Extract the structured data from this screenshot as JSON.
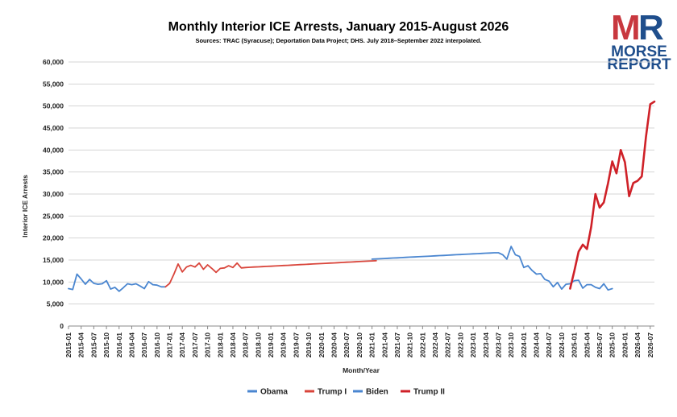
{
  "header": {
    "title": "Monthly Interior ICE Arrests, January 2015-August 2026",
    "subtitle": "Sources: TRAC (Syracuse); Deportation Data Project; DHS. July 2018–September 2022 interpolated."
  },
  "logo": {
    "mark": "MR",
    "line1": "MORSE",
    "line2": "REPORT",
    "colors": {
      "m": "#c8383f",
      "r": "#1f4e8c",
      "text": "#1f4e8c"
    }
  },
  "chart_data": {
    "type": "line",
    "xlabel": "Month/Year",
    "ylabel": "Interior ICE Arrests",
    "ylim": [
      0,
      60000
    ],
    "yticks": [
      0,
      5000,
      10000,
      15000,
      20000,
      25000,
      30000,
      35000,
      40000,
      45000,
      50000,
      55000,
      60000
    ],
    "ytick_labels": [
      "0",
      "5,000",
      "10,000",
      "15,000",
      "20,000",
      "25,000",
      "30,000",
      "35,000",
      "40,000",
      "45,000",
      "50,000",
      "55,000",
      "60,000"
    ],
    "xtick_labels": [
      "2015-01",
      "2015-04",
      "2015-07",
      "2015-10",
      "2016-01",
      "2016-04",
      "2016-07",
      "2016-10",
      "2017-01",
      "2017-04",
      "2017-07",
      "2017-10",
      "2018-01",
      "2018-04",
      "2018-07",
      "2018-10",
      "2019-01",
      "2019-04",
      "2019-07",
      "2019-10",
      "2020-01",
      "2020-04",
      "2020-07",
      "2020-10",
      "2021-01",
      "2021-04",
      "2021-07",
      "2021-10",
      "2022-01",
      "2022-04",
      "2022-07",
      "2022-10",
      "2023-01",
      "2023-04",
      "2023-07",
      "2023-10",
      "2024-01",
      "2024-04",
      "2024-07",
      "2024-10",
      "2025-01",
      "2025-04",
      "2025-07",
      "2025-10",
      "2026-01",
      "2026-04",
      "2026-07"
    ],
    "grid": true,
    "legend_position": "bottom-center",
    "series": [
      {
        "name": "Obama",
        "color": "#4a86d0",
        "start": "2015-01",
        "values": [
          8500,
          8300,
          11800,
          10700,
          9500,
          10600,
          9700,
          9500,
          9600,
          10300,
          8400,
          8800,
          7900,
          8700,
          9600,
          9400,
          9600,
          9100,
          8500,
          10100,
          9400,
          9300,
          8900,
          8900
        ]
      },
      {
        "name": "Trump I",
        "color": "#d9453b",
        "start": "2016-12",
        "values": [
          8900,
          9700,
          11800,
          14100,
          12300,
          13400,
          13800,
          13400,
          14300,
          12900,
          13900,
          13100,
          12200,
          13100,
          13200,
          13700,
          13300,
          14300,
          13200,
          13300,
          13350,
          13400,
          13450,
          13500,
          13550,
          13600,
          13650,
          13700,
          13750,
          13800,
          13850,
          13900,
          13950,
          14000,
          14050,
          14100,
          14150,
          14200,
          14250,
          14300,
          14350,
          14400,
          14450,
          14500,
          14550,
          14600,
          14650,
          14700,
          14750,
          14800,
          14850
        ]
      },
      {
        "name": "Biden",
        "color": "#4a86d0",
        "start": "2021-01",
        "values": [
          15200,
          15250,
          15300,
          15350,
          15400,
          15450,
          15500,
          15550,
          15600,
          15650,
          15700,
          15750,
          15800,
          15850,
          15900,
          15950,
          16000,
          16050,
          16100,
          16150,
          16200,
          16250,
          16300,
          16350,
          16400,
          16450,
          16500,
          16550,
          16600,
          16650,
          16650,
          16200,
          15200,
          18100,
          16200,
          15800,
          13300,
          13700,
          12600,
          11800,
          11900,
          10600,
          10200,
          8900,
          9900,
          8400,
          9500,
          9600,
          10300,
          10400,
          8600,
          9400,
          9400,
          8800,
          8500,
          9600,
          8200,
          8500
        ]
      },
      {
        "name": "Trump II",
        "color": "#cf2128",
        "start": "2024-12",
        "values": [
          8500,
          12500,
          16900,
          18500,
          17500,
          22500,
          30000,
          26900,
          28100,
          32500,
          37400,
          34700,
          40000,
          37200,
          29500,
          32500,
          33000,
          34000,
          43000,
          50400,
          51000
        ]
      }
    ]
  }
}
